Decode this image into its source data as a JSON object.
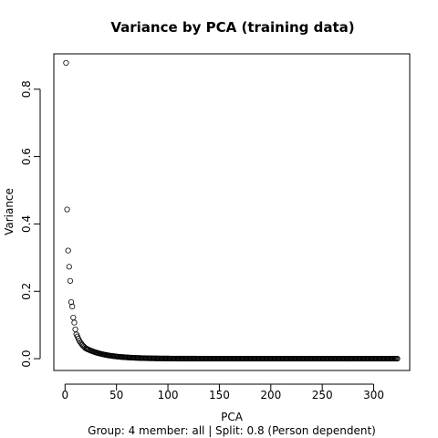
{
  "chart_data": {
    "type": "scatter",
    "title": "Variance by PCA (training data)",
    "xlabel": "PCA",
    "ylabel": "Variance",
    "subtitle": "Group:  4 member:  all | Split: 0.8  (Person dependent)",
    "xlim": [
      -10.9,
      335
    ],
    "ylim": [
      -0.035,
      0.905
    ],
    "xticks": [
      0,
      50,
      100,
      150,
      200,
      250,
      300
    ],
    "xtick_labels": [
      "0",
      "50",
      "100",
      "150",
      "200",
      "250",
      "300"
    ],
    "yticks": [
      0.0,
      0.2,
      0.4,
      0.6,
      0.8
    ],
    "ytick_labels": [
      "0.0",
      "0.2",
      "0.4",
      "0.6",
      "0.8"
    ],
    "marker": "open-circle",
    "n_points": 323,
    "leading_values": [
      0.878,
      0.443,
      0.321,
      0.273,
      0.231,
      0.168,
      0.155,
      0.122,
      0.107,
      0.087,
      0.072,
      0.066,
      0.059,
      0.053,
      0.048,
      0.044,
      0.04,
      0.037,
      0.034,
      0.031
    ],
    "tail_decay": 0.052
  }
}
